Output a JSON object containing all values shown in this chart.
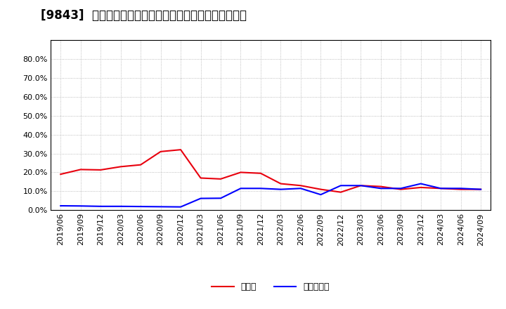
{
  "title": "[9843]  現預金、有利子負債の総資産に対する比率の推移",
  "x_labels": [
    "2019/06",
    "2019/09",
    "2019/12",
    "2020/03",
    "2020/06",
    "2020/09",
    "2020/12",
    "2021/03",
    "2021/06",
    "2021/09",
    "2021/12",
    "2022/03",
    "2022/06",
    "2022/09",
    "2022/12",
    "2023/03",
    "2023/06",
    "2023/09",
    "2023/12",
    "2024/03",
    "2024/06",
    "2024/09"
  ],
  "cash_values": [
    0.19,
    0.215,
    0.213,
    0.23,
    0.24,
    0.31,
    0.32,
    0.17,
    0.165,
    0.2,
    0.195,
    0.14,
    0.13,
    0.11,
    0.095,
    0.13,
    0.125,
    0.11,
    0.12,
    0.115,
    0.11,
    0.11
  ],
  "debt_values": [
    0.023,
    0.022,
    0.02,
    0.02,
    0.019,
    0.018,
    0.017,
    0.062,
    0.063,
    0.115,
    0.115,
    0.11,
    0.115,
    0.082,
    0.13,
    0.13,
    0.115,
    0.115,
    0.14,
    0.115,
    0.115,
    0.11
  ],
  "cash_color": "#e8000d",
  "debt_color": "#0000ff",
  "background_color": "#ffffff",
  "grid_color": "#aaaaaa",
  "ylim": [
    0.0,
    0.9
  ],
  "yticks": [
    0.0,
    0.1,
    0.2,
    0.3,
    0.4,
    0.5,
    0.6,
    0.7,
    0.8
  ],
  "legend_cash": "現預金",
  "legend_debt": "有利子負債",
  "title_fontsize": 12,
  "tick_fontsize": 8,
  "legend_fontsize": 9
}
